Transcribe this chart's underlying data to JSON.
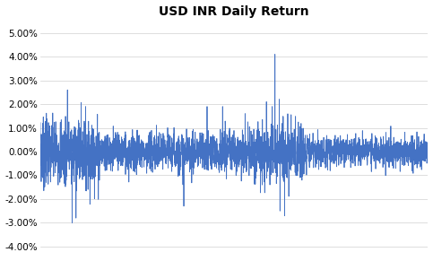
{
  "title": "USD INR Daily Return",
  "title_fontsize": 10,
  "title_fontweight": "bold",
  "line_color": "#4472C4",
  "line_width": 0.6,
  "ylim": [
    -0.044,
    0.055
  ],
  "yticks": [
    -0.04,
    -0.03,
    -0.02,
    -0.01,
    0.0,
    0.01,
    0.02,
    0.03,
    0.04,
    0.05
  ],
  "ytick_labels": [
    "-4.00%",
    "-3.00%",
    "-2.00%",
    "-1.00%",
    "0.00%",
    "1.00%",
    "2.00%",
    "3.00%",
    "4.00%",
    "5.00%"
  ],
  "background_color": "#ffffff",
  "n_points": 3000,
  "seed": 7,
  "figsize": [
    4.83,
    2.91
  ],
  "dpi": 100,
  "tick_fontsize": 7.5
}
